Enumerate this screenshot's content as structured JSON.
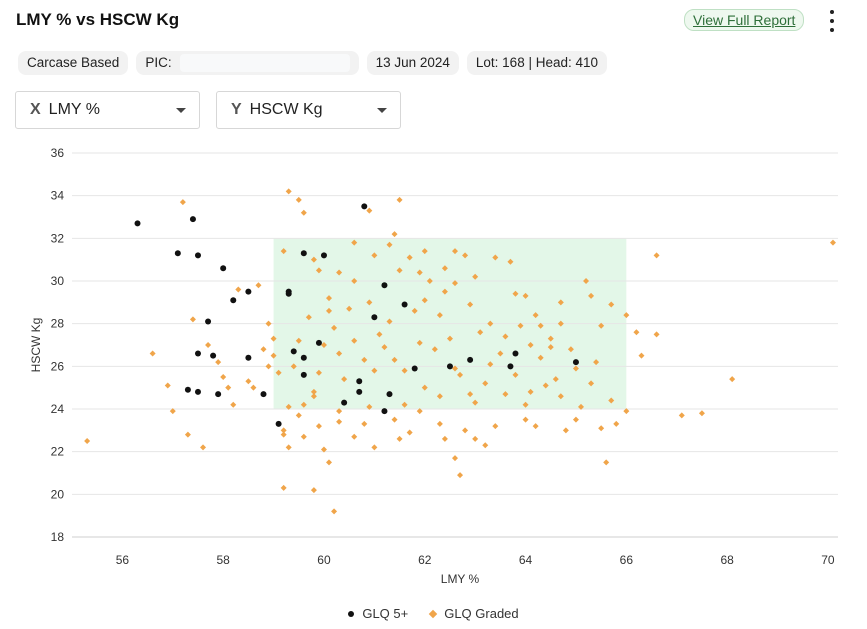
{
  "header": {
    "title": "LMY % vs HSCW Kg",
    "report_link": "View Full Report"
  },
  "chips": {
    "basis": "Carcase Based",
    "pic_label": "PIC:",
    "date": "13 Jun 2024",
    "lot_head": "Lot: 168 | Head: 410"
  },
  "selectors": {
    "x_letter": "X",
    "x_value": "LMY %",
    "y_letter": "Y",
    "y_value": "HSCW Kg"
  },
  "icons": [
    "more-vert-icon",
    "chevron-down-icon"
  ],
  "colors": {
    "glq5": "#111111",
    "graded": "#f0a54a",
    "target_zone": "#e3f7e8",
    "link": "#2f6f3a"
  },
  "chart_data": {
    "type": "scatter",
    "xlabel": "LMY %",
    "ylabel": "HSCW Kg",
    "xlim": [
      55,
      70.2
    ],
    "ylim": [
      18,
      36
    ],
    "xticks": [
      56,
      58,
      60,
      62,
      64,
      66,
      68,
      70
    ],
    "yticks": [
      18,
      20,
      22,
      24,
      26,
      28,
      30,
      32,
      34,
      36
    ],
    "grid": "horizontal",
    "legend_position": "bottom-center",
    "target_zone": {
      "x": [
        59,
        66
      ],
      "y": [
        24,
        32
      ]
    },
    "series": [
      {
        "name": "GLQ 5+",
        "marker": "circle",
        "points": [
          [
            56.3,
            32.7
          ],
          [
            57.4,
            32.9
          ],
          [
            57.1,
            31.3
          ],
          [
            57.5,
            31.2
          ],
          [
            58.0,
            30.6
          ],
          [
            58.2,
            29.1
          ],
          [
            58.5,
            29.5
          ],
          [
            57.7,
            28.1
          ],
          [
            57.5,
            26.6
          ],
          [
            57.8,
            26.5
          ],
          [
            58.5,
            26.4
          ],
          [
            57.3,
            24.9
          ],
          [
            57.5,
            24.8
          ],
          [
            57.9,
            24.7
          ],
          [
            58.8,
            24.7
          ],
          [
            59.1,
            23.3
          ],
          [
            59.3,
            29.5
          ],
          [
            59.3,
            29.4
          ],
          [
            59.6,
            31.3
          ],
          [
            60.0,
            31.2
          ],
          [
            60.8,
            33.5
          ],
          [
            59.4,
            26.7
          ],
          [
            59.6,
            26.4
          ],
          [
            59.6,
            25.6
          ],
          [
            59.9,
            27.1
          ],
          [
            60.4,
            24.3
          ],
          [
            60.7,
            24.8
          ],
          [
            60.7,
            25.3
          ],
          [
            61.0,
            28.3
          ],
          [
            61.2,
            29.8
          ],
          [
            61.2,
            23.9
          ],
          [
            61.3,
            24.7
          ],
          [
            61.6,
            28.9
          ],
          [
            61.8,
            25.9
          ],
          [
            62.9,
            26.3
          ],
          [
            62.5,
            26.0
          ],
          [
            63.7,
            26.0
          ],
          [
            63.8,
            26.6
          ],
          [
            65.0,
            26.2
          ]
        ]
      },
      {
        "name": "GLQ Graded",
        "marker": "diamond",
        "points": [
          [
            55.3,
            22.5
          ],
          [
            56.6,
            26.6
          ],
          [
            56.9,
            25.1
          ],
          [
            57.0,
            23.9
          ],
          [
            57.2,
            33.7
          ],
          [
            57.3,
            22.8
          ],
          [
            57.6,
            22.2
          ],
          [
            57.4,
            28.2
          ],
          [
            57.7,
            27.0
          ],
          [
            57.9,
            26.2
          ],
          [
            58.0,
            25.5
          ],
          [
            58.2,
            24.2
          ],
          [
            58.3,
            29.6
          ],
          [
            58.1,
            25.0
          ],
          [
            58.5,
            25.3
          ],
          [
            58.7,
            29.8
          ],
          [
            58.9,
            28.0
          ],
          [
            58.8,
            26.8
          ],
          [
            59.0,
            26.5
          ],
          [
            59.1,
            25.7
          ],
          [
            59.2,
            23.0
          ],
          [
            59.3,
            24.1
          ],
          [
            59.2,
            22.8
          ],
          [
            59.3,
            22.2
          ],
          [
            59.5,
            23.7
          ],
          [
            59.6,
            22.7
          ],
          [
            59.8,
            24.6
          ],
          [
            59.9,
            23.2
          ],
          [
            60.0,
            22.1
          ],
          [
            60.1,
            21.5
          ],
          [
            59.2,
            20.3
          ],
          [
            59.8,
            20.2
          ],
          [
            60.2,
            19.2
          ],
          [
            60.3,
            23.4
          ],
          [
            60.6,
            22.7
          ],
          [
            60.8,
            23.3
          ],
          [
            61.0,
            22.2
          ],
          [
            61.5,
            22.6
          ],
          [
            61.7,
            22.9
          ],
          [
            61.9,
            23.9
          ],
          [
            62.3,
            23.3
          ],
          [
            62.6,
            21.7
          ],
          [
            62.7,
            20.9
          ],
          [
            62.8,
            23.0
          ],
          [
            63.0,
            22.6
          ],
          [
            63.2,
            22.3
          ],
          [
            59.3,
            34.2
          ],
          [
            59.5,
            33.8
          ],
          [
            59.6,
            33.2
          ],
          [
            59.2,
            31.4
          ],
          [
            59.8,
            31.0
          ],
          [
            60.3,
            30.4
          ],
          [
            60.6,
            30.0
          ],
          [
            60.9,
            33.3
          ],
          [
            61.3,
            31.7
          ],
          [
            61.5,
            33.8
          ],
          [
            61.7,
            31.1
          ],
          [
            61.4,
            32.2
          ],
          [
            62.1,
            30.0
          ],
          [
            62.4,
            30.6
          ],
          [
            62.6,
            31.4
          ],
          [
            62.8,
            31.2
          ],
          [
            63.4,
            31.1
          ],
          [
            63.7,
            30.9
          ],
          [
            64.0,
            29.3
          ],
          [
            64.2,
            28.4
          ],
          [
            64.3,
            27.9
          ],
          [
            64.5,
            27.3
          ],
          [
            64.7,
            28.0
          ],
          [
            64.9,
            26.8
          ],
          [
            65.2,
            30.0
          ],
          [
            65.3,
            29.3
          ],
          [
            65.5,
            27.9
          ],
          [
            65.4,
            26.2
          ],
          [
            65.7,
            24.4
          ],
          [
            65.6,
            21.5
          ],
          [
            65.8,
            23.3
          ],
          [
            66.0,
            23.9
          ],
          [
            66.0,
            28.4
          ],
          [
            66.2,
            27.6
          ],
          [
            66.6,
            27.5
          ],
          [
            66.6,
            31.2
          ],
          [
            67.1,
            23.7
          ],
          [
            67.5,
            23.8
          ],
          [
            68.1,
            25.4
          ],
          [
            70.1,
            31.8
          ],
          [
            65.0,
            23.5
          ],
          [
            64.8,
            23.0
          ],
          [
            64.2,
            23.2
          ],
          [
            64.0,
            23.5
          ],
          [
            63.5,
            26.6
          ],
          [
            63.2,
            25.2
          ],
          [
            63.8,
            25.6
          ],
          [
            64.1,
            24.8
          ],
          [
            63.1,
            27.6
          ],
          [
            62.3,
            28.4
          ],
          [
            62.7,
            25.6
          ],
          [
            62.9,
            24.7
          ],
          [
            62.2,
            26.8
          ],
          [
            61.9,
            27.1
          ],
          [
            61.4,
            26.3
          ],
          [
            61.6,
            25.8
          ],
          [
            61.1,
            27.5
          ],
          [
            60.8,
            26.3
          ],
          [
            60.4,
            25.4
          ],
          [
            60.2,
            27.8
          ],
          [
            59.9,
            25.7
          ],
          [
            59.7,
            28.3
          ],
          [
            59.5,
            27.2
          ],
          [
            60.1,
            29.2
          ],
          [
            60.5,
            28.7
          ],
          [
            60.9,
            29.0
          ],
          [
            61.3,
            28.1
          ],
          [
            61.8,
            28.6
          ],
          [
            62.0,
            29.1
          ],
          [
            62.4,
            29.5
          ],
          [
            62.9,
            28.9
          ],
          [
            63.3,
            28.0
          ],
          [
            63.6,
            27.4
          ],
          [
            64.3,
            26.4
          ],
          [
            64.6,
            25.4
          ],
          [
            64.5,
            26.9
          ],
          [
            65.0,
            25.9
          ],
          [
            65.3,
            25.2
          ],
          [
            59.9,
            30.5
          ],
          [
            60.6,
            31.8
          ],
          [
            61.0,
            31.2
          ],
          [
            62.0,
            31.4
          ],
          [
            63.0,
            30.2
          ],
          [
            61.5,
            30.5
          ],
          [
            60.3,
            26.6
          ],
          [
            61.2,
            26.9
          ],
          [
            62.5,
            27.3
          ],
          [
            63.9,
            27.9
          ],
          [
            64.1,
            27.0
          ],
          [
            59.4,
            26.0
          ],
          [
            59.8,
            24.8
          ],
          [
            60.9,
            24.1
          ],
          [
            61.6,
            24.2
          ],
          [
            62.3,
            24.6
          ],
          [
            63.0,
            24.3
          ],
          [
            63.6,
            24.7
          ],
          [
            64.4,
            25.1
          ],
          [
            65.1,
            24.1
          ],
          [
            58.9,
            26.0
          ],
          [
            58.6,
            25.0
          ],
          [
            59.0,
            27.3
          ],
          [
            60.0,
            27.0
          ],
          [
            60.6,
            27.2
          ],
          [
            61.0,
            25.8
          ],
          [
            62.0,
            25.0
          ],
          [
            62.6,
            25.9
          ],
          [
            63.3,
            26.1
          ],
          [
            64.0,
            24.2
          ],
          [
            64.7,
            24.6
          ],
          [
            65.5,
            23.1
          ],
          [
            66.3,
            26.5
          ],
          [
            59.6,
            24.2
          ],
          [
            60.3,
            23.9
          ],
          [
            61.4,
            23.5
          ],
          [
            62.4,
            22.6
          ],
          [
            63.4,
            23.2
          ],
          [
            60.1,
            28.6
          ],
          [
            61.9,
            30.4
          ],
          [
            62.6,
            29.9
          ],
          [
            63.8,
            29.4
          ],
          [
            64.7,
            29.0
          ],
          [
            65.7,
            28.9
          ]
        ]
      }
    ]
  }
}
